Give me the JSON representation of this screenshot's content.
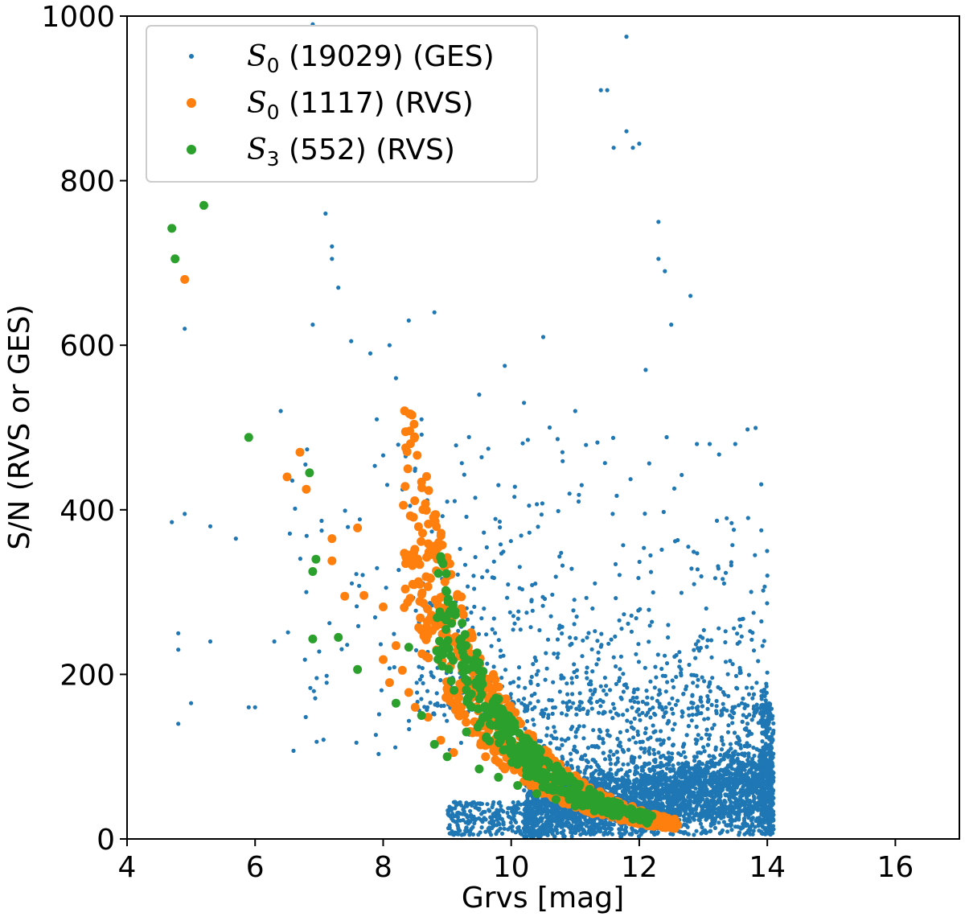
{
  "chart_data": {
    "type": "scatter",
    "xlabel": "Grvs [mag]",
    "ylabel": "S/N (RVS or GES)",
    "xlim": [
      4,
      17
    ],
    "ylim": [
      0,
      1000
    ],
    "x_ticks": [
      4,
      6,
      8,
      10,
      12,
      14,
      16
    ],
    "y_ticks": [
      0,
      200,
      400,
      600,
      800,
      1000
    ],
    "grid": false,
    "legend_position": "top-left",
    "series": [
      {
        "name": "S0 (19029) (GES)",
        "legend_sym": "S",
        "legend_sub": "0",
        "legend_rest": " (19029) (GES)",
        "color": "#1f77b4",
        "marker": "small-dot",
        "approximate_points": [
          [
            4.7,
            385
          ],
          [
            4.8,
            140
          ],
          [
            4.8,
            230
          ],
          [
            4.8,
            250
          ],
          [
            4.9,
            620
          ],
          [
            4.9,
            395
          ],
          [
            5.0,
            165
          ],
          [
            5.3,
            380
          ],
          [
            5.3,
            240
          ],
          [
            5.7,
            365
          ],
          [
            5.9,
            160
          ],
          [
            6.0,
            160
          ],
          [
            6.3,
            240
          ],
          [
            6.4,
            520
          ],
          [
            6.8,
            300
          ],
          [
            6.9,
            990
          ],
          [
            6.9,
            625
          ],
          [
            7.1,
            760
          ],
          [
            7.2,
            720
          ],
          [
            7.2,
            705
          ],
          [
            7.3,
            670
          ],
          [
            7.5,
            605
          ],
          [
            7.8,
            590
          ],
          [
            7.9,
            510
          ],
          [
            8.1,
            600
          ],
          [
            8.2,
            560
          ],
          [
            8.4,
            630
          ],
          [
            8.5,
            450
          ],
          [
            8.6,
            510
          ],
          [
            8.8,
            640
          ],
          [
            9.0,
            410
          ],
          [
            9.5,
            540
          ],
          [
            9.8,
            430
          ],
          [
            9.9,
            575
          ],
          [
            10.2,
            530
          ],
          [
            10.5,
            610
          ],
          [
            10.6,
            500
          ],
          [
            10.8,
            470
          ],
          [
            11.0,
            520
          ],
          [
            11.1,
            430
          ],
          [
            11.4,
            910
          ],
          [
            11.5,
            910
          ],
          [
            11.6,
            840
          ],
          [
            11.8,
            975
          ],
          [
            11.8,
            860
          ],
          [
            11.9,
            840
          ],
          [
            12.0,
            845
          ],
          [
            12.1,
            570
          ],
          [
            12.3,
            750
          ],
          [
            12.3,
            705
          ],
          [
            12.4,
            690
          ],
          [
            12.5,
            625
          ],
          [
            12.8,
            660
          ],
          [
            12.9,
            480
          ],
          [
            13.1,
            480
          ],
          [
            13.5,
            480
          ],
          [
            13.7,
            390
          ],
          [
            14.0,
            320
          ]
        ],
        "dense_region": {
          "x_range": [
            9.5,
            14.1
          ],
          "y_range": [
            0,
            250
          ],
          "center": [
            12.5,
            90
          ]
        }
      },
      {
        "name": "S0 (1117) (RVS)",
        "legend_sym": "S",
        "legend_sub": "0",
        "legend_rest": " (1117) (RVS)",
        "color": "#ff7f0e",
        "marker": "dot",
        "approximate_points": [
          [
            4.9,
            680
          ],
          [
            6.5,
            440
          ],
          [
            6.7,
            470
          ],
          [
            6.8,
            425
          ],
          [
            7.2,
            365
          ],
          [
            7.2,
            338
          ],
          [
            7.4,
            295
          ],
          [
            7.6,
            378
          ],
          [
            7.7,
            296
          ],
          [
            8.0,
            282
          ],
          [
            8.0,
            218
          ],
          [
            8.1,
            190
          ],
          [
            8.2,
            235
          ],
          [
            8.3,
            205
          ],
          [
            8.4,
            178
          ],
          [
            8.5,
            160
          ],
          [
            8.7,
            148
          ],
          [
            8.9,
            120
          ],
          [
            9.1,
            105
          ],
          [
            9.4,
            130
          ],
          [
            9.6,
            100
          ],
          [
            9.9,
            85
          ],
          [
            10.2,
            70
          ],
          [
            10.5,
            60
          ],
          [
            10.8,
            50
          ],
          [
            11.1,
            42
          ],
          [
            11.4,
            35
          ],
          [
            11.7,
            30
          ],
          [
            12.0,
            25
          ],
          [
            12.3,
            20
          ],
          [
            12.6,
            17
          ]
        ]
      },
      {
        "name": "S3 (552) (RVS)",
        "legend_sym": "S",
        "legend_sub": "3",
        "legend_rest": " (552) (RVS)",
        "color": "#2ca02c",
        "marker": "dot",
        "approximate_points": [
          [
            4.7,
            742
          ],
          [
            4.75,
            705
          ],
          [
            5.2,
            770
          ],
          [
            5.9,
            488
          ],
          [
            6.85,
            445
          ],
          [
            6.9,
            325
          ],
          [
            6.95,
            340
          ],
          [
            6.9,
            243
          ],
          [
            7.3,
            245
          ],
          [
            7.6,
            206
          ],
          [
            8.2,
            165
          ],
          [
            8.4,
            233
          ],
          [
            8.6,
            150
          ],
          [
            8.8,
            115
          ],
          [
            9.0,
            100
          ],
          [
            9.3,
            130
          ],
          [
            9.5,
            85
          ],
          [
            9.8,
            75
          ],
          [
            10.1,
            65
          ],
          [
            10.4,
            55
          ],
          [
            10.7,
            48
          ],
          [
            11.0,
            40
          ],
          [
            11.3,
            34
          ],
          [
            11.6,
            29
          ],
          [
            11.9,
            24
          ],
          [
            12.1,
            21
          ]
        ]
      }
    ]
  }
}
